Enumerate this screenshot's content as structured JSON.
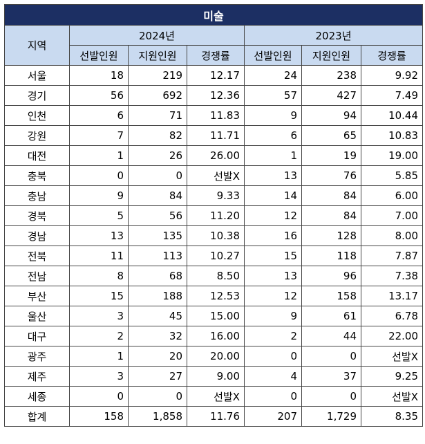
{
  "title": "미술",
  "headers": {
    "region": "지역",
    "year_2024": "2024년",
    "year_2023": "2023년",
    "sub": [
      "선발인원",
      "지원인원",
      "경쟁률",
      "선발인원",
      "지원인원",
      "경쟁률"
    ]
  },
  "rows": [
    [
      "서울",
      "18",
      "219",
      "12.17",
      "24",
      "238",
      "9.92"
    ],
    [
      "경기",
      "56",
      "692",
      "12.36",
      "57",
      "427",
      "7.49"
    ],
    [
      "인천",
      "6",
      "71",
      "11.83",
      "9",
      "94",
      "10.44"
    ],
    [
      "강원",
      "7",
      "82",
      "11.71",
      "6",
      "65",
      "10.83"
    ],
    [
      "대전",
      "1",
      "26",
      "26.00",
      "1",
      "19",
      "19.00"
    ],
    [
      "충북",
      "0",
      "0",
      "선발X",
      "13",
      "76",
      "5.85"
    ],
    [
      "충남",
      "9",
      "84",
      "9.33",
      "14",
      "84",
      "6.00"
    ],
    [
      "경북",
      "5",
      "56",
      "11.20",
      "12",
      "84",
      "7.00"
    ],
    [
      "경남",
      "13",
      "135",
      "10.38",
      "16",
      "128",
      "8.00"
    ],
    [
      "전북",
      "11",
      "113",
      "10.27",
      "15",
      "118",
      "7.87"
    ],
    [
      "전남",
      "8",
      "68",
      "8.50",
      "13",
      "96",
      "7.38"
    ],
    [
      "부산",
      "15",
      "188",
      "12.53",
      "12",
      "158",
      "13.17"
    ],
    [
      "울산",
      "3",
      "45",
      "15.00",
      "9",
      "61",
      "6.78"
    ],
    [
      "대구",
      "2",
      "32",
      "16.00",
      "2",
      "44",
      "22.00"
    ],
    [
      "광주",
      "1",
      "20",
      "20.00",
      "0",
      "0",
      "선발X"
    ],
    [
      "제주",
      "3",
      "27",
      "9.00",
      "4",
      "37",
      "9.25"
    ],
    [
      "세종",
      "0",
      "0",
      "선발X",
      "0",
      "0",
      "선발X"
    ],
    [
      "합계",
      "158",
      "1,858",
      "11.76",
      "207",
      "1,729",
      "8.35"
    ]
  ],
  "colors": {
    "title_bg": "#1c2f63",
    "header_bg": "#c9daf0",
    "border": "#444444"
  }
}
